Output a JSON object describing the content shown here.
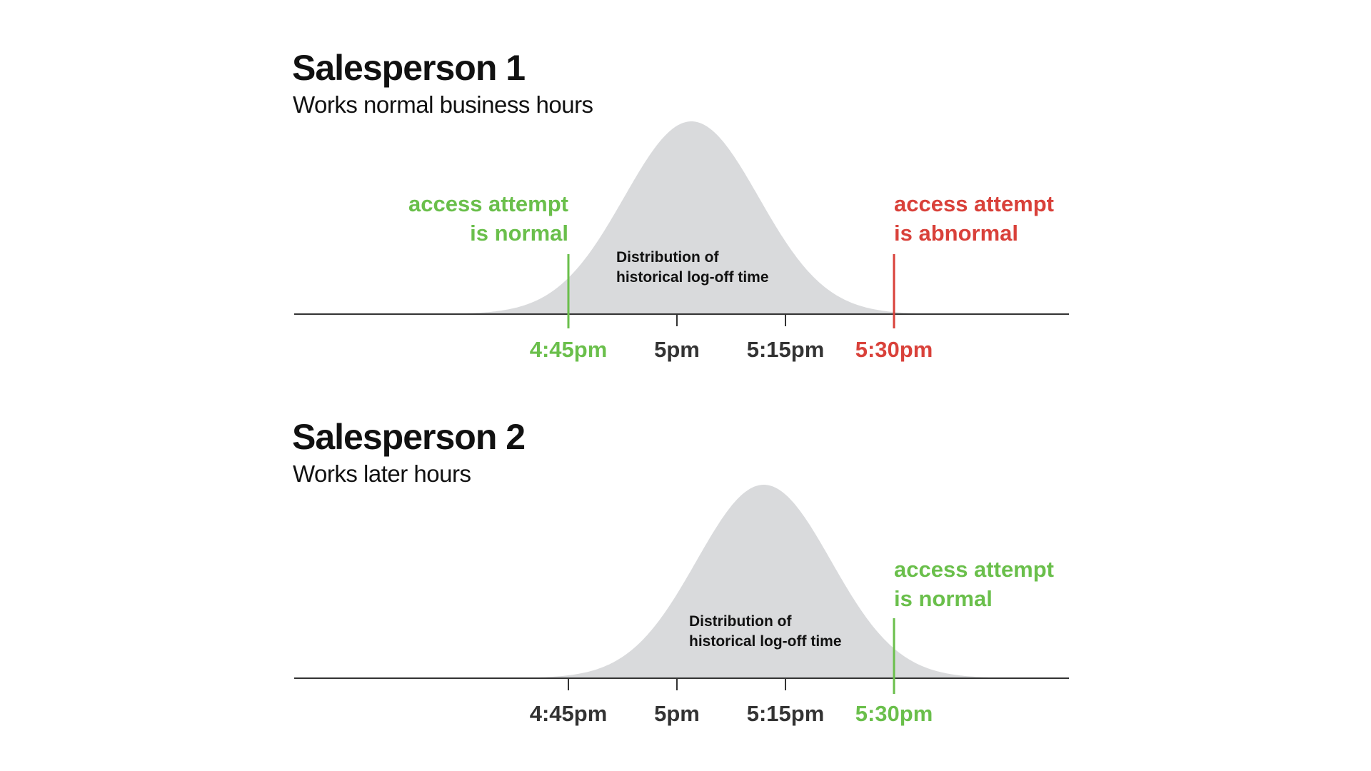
{
  "colors": {
    "normal": "#6abf4b",
    "abnormal": "#d9413a",
    "curve_fill": "#d9dadc",
    "axis": "#333333",
    "tick_label": "#333333"
  },
  "panels": [
    {
      "title": "Salesperson 1",
      "subtitle": "Works normal business hours",
      "curve_label_line1": "Distribution of",
      "curve_label_line2": "historical log-off time",
      "mean_minutes_after_445": 17,
      "ticks": [
        {
          "label": "4:45pm",
          "minutes": 0,
          "status": "normal"
        },
        {
          "label": "5pm",
          "minutes": 15,
          "status": "neutral"
        },
        {
          "label": "5:15pm",
          "minutes": 30,
          "status": "neutral"
        },
        {
          "label": "5:30pm",
          "minutes": 45,
          "status": "abnormal"
        }
      ],
      "markers": [
        {
          "minutes": 0,
          "status": "normal",
          "line1": "access attempt",
          "line2": "is normal",
          "align": "right"
        },
        {
          "minutes": 45,
          "status": "abnormal",
          "line1": "access attempt",
          "line2": "is abnormal",
          "align": "left"
        }
      ]
    },
    {
      "title": "Salesperson 2",
      "subtitle": "Works later hours",
      "curve_label_line1": "Distribution of",
      "curve_label_line2": "historical log-off time",
      "mean_minutes_after_445": 27,
      "ticks": [
        {
          "label": "4:45pm",
          "minutes": 0,
          "status": "neutral"
        },
        {
          "label": "5pm",
          "minutes": 15,
          "status": "neutral"
        },
        {
          "label": "5:15pm",
          "minutes": 30,
          "status": "neutral"
        },
        {
          "label": "5:30pm",
          "minutes": 45,
          "status": "normal"
        }
      ],
      "markers": [
        {
          "minutes": 45,
          "status": "normal",
          "line1": "access attempt",
          "line2": "is normal",
          "align": "left"
        }
      ]
    }
  ]
}
